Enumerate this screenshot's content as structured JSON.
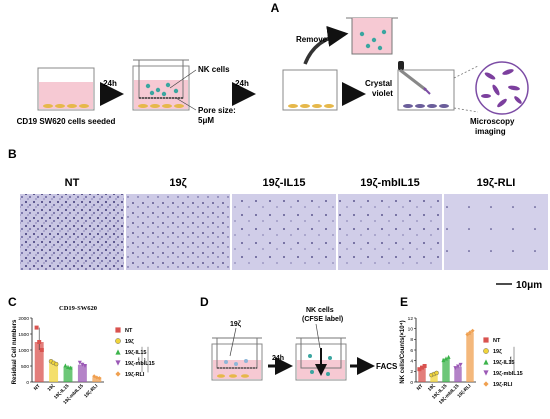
{
  "panels": {
    "A": "A",
    "B": "B",
    "C": "C",
    "D": "D",
    "E": "E"
  },
  "panelA": {
    "seeded_label": "CD19 SW620  cells seeded",
    "step1_time": "24h",
    "nk_label": "NK cells",
    "pore_label_1": "Pore size:",
    "pore_label_2": "5μM",
    "step2_time": "24h",
    "remove_label": "Remove",
    "crystal_label_1": "Crystal",
    "crystal_label_2": "violet",
    "imaging_label_1": "Microscopy",
    "imaging_label_2": "imaging"
  },
  "panelB": {
    "images": [
      "NT",
      "19ζ",
      "19ζ-IL15",
      "19ζ-mbIL15",
      "19ζ-RLI"
    ],
    "scale_bar": "10μm"
  },
  "panelD": {
    "car_label": "19ζ",
    "time_label": "24h",
    "nk_label_1": "NK cells",
    "nk_label_2": "(CFSE label)",
    "readout": "FACS"
  },
  "legend": [
    {
      "label": "NT",
      "color": "#d9534f",
      "marker": "square"
    },
    {
      "label": "19ζ",
      "color": "#f0d43a",
      "marker": "circle"
    },
    {
      "label": "19ζ-IL15",
      "color": "#3cb44b",
      "marker": "triangle-up"
    },
    {
      "label": "19ζ-mbIL15",
      "color": "#9b59b6",
      "marker": "triangle-down"
    },
    {
      "label": "19ζ-RLI",
      "color": "#f0a050",
      "marker": "diamond"
    }
  ],
  "chart_data": [
    {
      "panel": "C",
      "type": "bar",
      "title": "CD19-SW620",
      "ylabel": "Residual Cell numbers",
      "categories": [
        "NT",
        "19ζ",
        "19ζ-IL15",
        "19ζ-mbIL15",
        "19ζ-RLI"
      ],
      "values": [
        1250,
        600,
        480,
        540,
        150
      ],
      "points": [
        [
          1700,
          1250,
          1000
        ],
        [
          650,
          600,
          560
        ],
        [
          520,
          470,
          450
        ],
        [
          600,
          540,
          500
        ],
        [
          180,
          140,
          120
        ]
      ],
      "colors": [
        "#d9534f",
        "#f0d43a",
        "#3cb44b",
        "#9b59b6",
        "#f0a050"
      ],
      "ylim": [
        0,
        2000
      ],
      "yticks": [
        0,
        500,
        1000,
        1500,
        2000
      ],
      "significance": [
        "***",
        "**"
      ]
    },
    {
      "panel": "E",
      "type": "bar",
      "title": "",
      "ylabel": "NK cells/Counts(×10⁴)",
      "categories": [
        "NT",
        "19ζ",
        "19ζ-IL15",
        "19ζ-mbIL15",
        "19ζ-RLI"
      ],
      "values": [
        2.7,
        1.5,
        4.4,
        2.9,
        9.3
      ],
      "points": [
        [
          2.4,
          2.7,
          3.0
        ],
        [
          1.3,
          1.5,
          1.7
        ],
        [
          4.1,
          4.4,
          4.7
        ],
        [
          2.6,
          2.9,
          3.2
        ],
        [
          8.9,
          9.3,
          9.6
        ]
      ],
      "colors": [
        "#d9534f",
        "#f0d43a",
        "#3cb44b",
        "#9b59b6",
        "#f0a050"
      ],
      "ylim": [
        0,
        12
      ],
      "yticks": [
        0,
        2,
        4,
        6,
        8,
        10,
        12
      ],
      "significance": [
        "****"
      ]
    }
  ]
}
